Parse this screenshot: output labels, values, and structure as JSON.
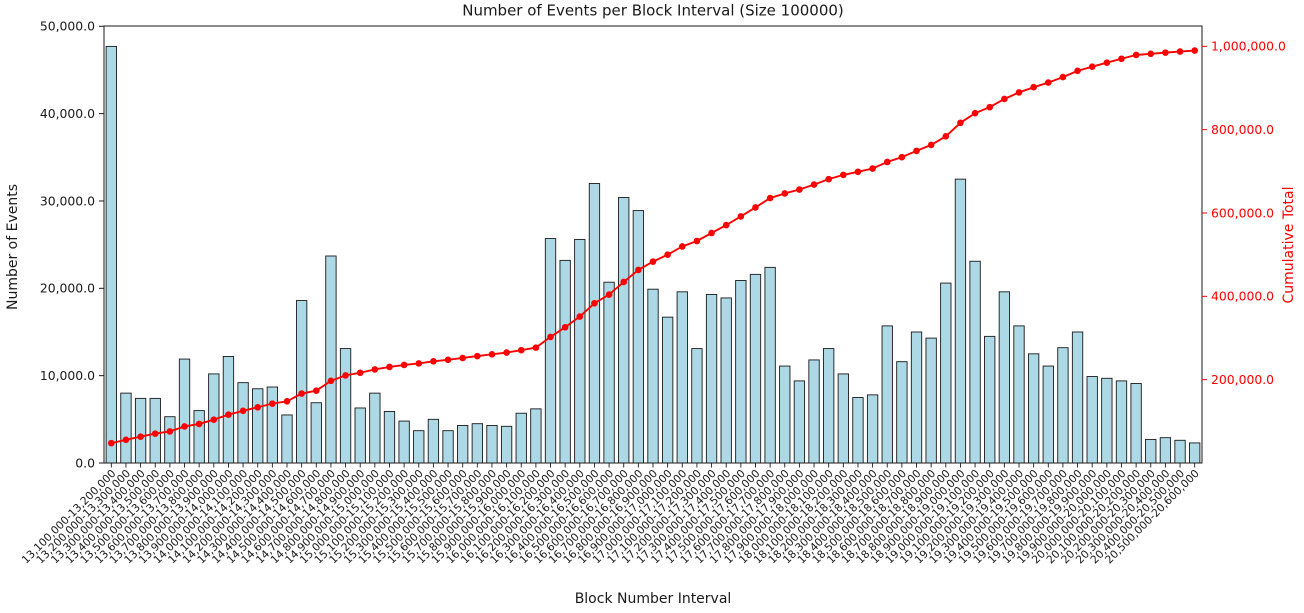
{
  "page": {
    "background": "#ffffff"
  },
  "chart_data": {
    "type": "bar",
    "title": "Number of Events per Block Interval (Size 100000)",
    "xlabel": "Block Number Interval",
    "ylabel_left": "Number of Events",
    "ylabel_right": "Cumulative Total",
    "ylim_left": [
      0,
      50000
    ],
    "ylim_right": [
      0,
      1000000
    ],
    "grid": false,
    "legend_position": "none",
    "ytick_labels_left": [
      "0.0",
      "10,000.0",
      "20,000.0",
      "30,000.0",
      "40,000.0",
      "50,000.0"
    ],
    "ytick_values_left": [
      0,
      10000,
      20000,
      30000,
      40000,
      50000
    ],
    "ytick_labels_right": [
      "200,000.0",
      "400,000.0",
      "600,000.0",
      "800,000.0",
      "1,000,000.0"
    ],
    "ytick_values_right": [
      200000,
      400000,
      600000,
      800000,
      1000000
    ],
    "colors": {
      "bar_fill": "#ADD8E6",
      "bar_edge": "#1a1a1a",
      "line": "#ff0000",
      "text": "#1a1a1a"
    },
    "categories": [
      "13,100,000-13,200,000",
      "13,200,000-13,300,000",
      "13,300,000-13,400,000",
      "13,400,000-13,500,000",
      "13,500,000-13,600,000",
      "13,600,000-13,700,000",
      "13,700,000-13,800,000",
      "13,800,000-13,900,000",
      "13,900,000-14,000,000",
      "14,000,000-14,100,000",
      "14,100,000-14,200,000",
      "14,200,000-14,300,000",
      "14,300,000-14,400,000",
      "14,400,000-14,500,000",
      "14,500,000-14,600,000",
      "14,600,000-14,700,000",
      "14,700,000-14,800,000",
      "14,800,000-14,900,000",
      "14,900,000-15,000,000",
      "15,000,000-15,100,000",
      "15,100,000-15,200,000",
      "15,200,000-15,300,000",
      "15,300,000-15,400,000",
      "15,400,000-15,500,000",
      "15,500,000-15,600,000",
      "15,600,000-15,700,000",
      "15,700,000-15,800,000",
      "15,800,000-15,900,000",
      "15,900,000-16,000,000",
      "16,000,000-16,100,000",
      "16,100,000-16,200,000",
      "16,200,000-16,300,000",
      "16,300,000-16,400,000",
      "16,400,000-16,500,000",
      "16,500,000-16,600,000",
      "16,600,000-16,700,000",
      "16,700,000-16,800,000",
      "16,800,000-16,900,000",
      "16,900,000-17,000,000",
      "17,000,000-17,100,000",
      "17,100,000-17,200,000",
      "17,200,000-17,300,000",
      "17,300,000-17,400,000",
      "17,400,000-17,500,000",
      "17,500,000-17,600,000",
      "17,600,000-17,700,000",
      "17,700,000-17,800,000",
      "17,800,000-17,900,000",
      "17,900,000-18,000,000",
      "18,000,000-18,100,000",
      "18,100,000-18,200,000",
      "18,200,000-18,300,000",
      "18,300,000-18,400,000",
      "18,400,000-18,500,000",
      "18,500,000-18,600,000",
      "18,600,000-18,700,000",
      "18,700,000-18,800,000",
      "18,800,000-18,900,000",
      "18,900,000-19,000,000",
      "19,000,000-19,100,000",
      "19,100,000-19,200,000",
      "19,200,000-19,300,000",
      "19,300,000-19,400,000",
      "19,400,000-19,500,000",
      "19,500,000-19,600,000",
      "19,600,000-19,700,000",
      "19,700,000-19,800,000",
      "19,800,000-19,900,000",
      "19,900,000-20,000,000",
      "20,000,000-20,100,000",
      "20,100,000-20,200,000",
      "20,200,000-20,300,000",
      "20,300,000-20,400,000",
      "20,400,000-20,500,000",
      "20,500,000-20,600,000"
    ],
    "series": [
      {
        "name": "Number of Events",
        "type": "bar",
        "axis": "left",
        "values": [
          47700,
          8000,
          7400,
          7400,
          5300,
          11900,
          6000,
          10200,
          12200,
          9200,
          8500,
          8700,
          5500,
          18600,
          6900,
          23700,
          13100,
          6300,
          8000,
          5900,
          4800,
          3700,
          5000,
          3700,
          4300,
          4500,
          4300,
          4200,
          5700,
          6200,
          25700,
          23200,
          25600,
          32000,
          20700,
          30400,
          28900,
          19900,
          16700,
          19600,
          13100,
          19300,
          18900,
          20900,
          21600,
          22400,
          11100,
          9400,
          11800,
          13100,
          10200,
          7500,
          7800,
          15700,
          11600,
          15000,
          14300,
          20600,
          32500,
          23100,
          14500,
          19600,
          15700,
          12500,
          11100,
          13200,
          15000,
          9900,
          9700,
          9400,
          9100,
          2700,
          2900,
          2600,
          2300
        ]
      },
      {
        "name": "Cumulative Total",
        "type": "line",
        "axis": "right",
        "marker": "circle",
        "values": [
          47700,
          55700,
          63100,
          70500,
          75800,
          87700,
          93700,
          103900,
          116100,
          125300,
          133800,
          142500,
          148000,
          166600,
          173500,
          197200,
          210300,
          216600,
          224600,
          230500,
          235300,
          239000,
          244000,
          247700,
          252000,
          256500,
          260800,
          265000,
          270700,
          276900,
          302600,
          325800,
          351400,
          383400,
          404100,
          434500,
          463400,
          483300,
          500000,
          519600,
          532700,
          552000,
          570900,
          591800,
          613400,
          635800,
          646900,
          656300,
          668100,
          681200,
          691400,
          698900,
          706700,
          722400,
          734000,
          749000,
          763300,
          783900,
          816400,
          839500,
          854000,
          873600,
          889300,
          901800,
          912900,
          926100,
          941100,
          951000,
          960700,
          970100,
          979200,
          981900,
          984800,
          987400,
          989700
        ]
      }
    ]
  }
}
